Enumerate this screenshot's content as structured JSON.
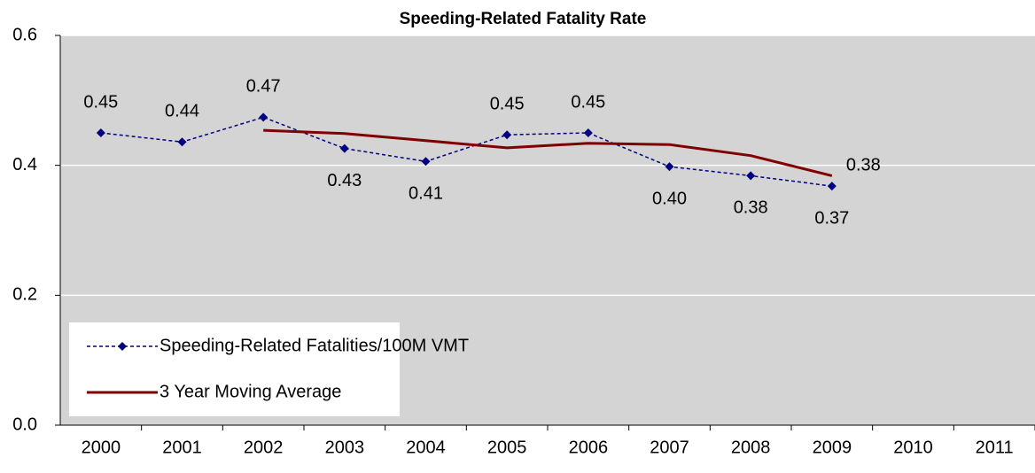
{
  "chart_data": {
    "type": "line",
    "title": "Speeding-Related Fatality Rate",
    "categories": [
      "2000",
      "2001",
      "2002",
      "2003",
      "2004",
      "2005",
      "2006",
      "2007",
      "2008",
      "2009",
      "2010",
      "2011"
    ],
    "series": [
      {
        "name": "Speeding-Related Fatalities/100M VMT",
        "color": "#000080",
        "dashed": true,
        "marker": "diamond",
        "values": [
          0.45,
          0.436,
          0.474,
          0.426,
          0.406,
          0.447,
          0.45,
          0.398,
          0.384,
          0.368,
          null,
          null
        ],
        "value_labels": [
          "0.45",
          "0.44",
          "0.47",
          "0.43",
          "0.41",
          "0.45",
          "0.45",
          "0.40",
          "0.38",
          "0.37",
          null,
          null
        ]
      },
      {
        "name": "3 Year Moving Average",
        "color": "#800000",
        "dashed": false,
        "marker": null,
        "values": [
          null,
          null,
          0.454,
          0.449,
          0.438,
          0.427,
          0.434,
          0.432,
          0.415,
          0.384,
          null,
          null
        ],
        "value_labels": [
          null,
          null,
          null,
          null,
          null,
          null,
          null,
          null,
          null,
          "0.38",
          null,
          null
        ]
      }
    ],
    "ylim": [
      0,
      0.6
    ],
    "yticks": [
      {
        "value": 0,
        "label": "0.0"
      },
      0.2,
      0.4,
      0.6
    ],
    "grid": true,
    "legend": "lower left"
  }
}
